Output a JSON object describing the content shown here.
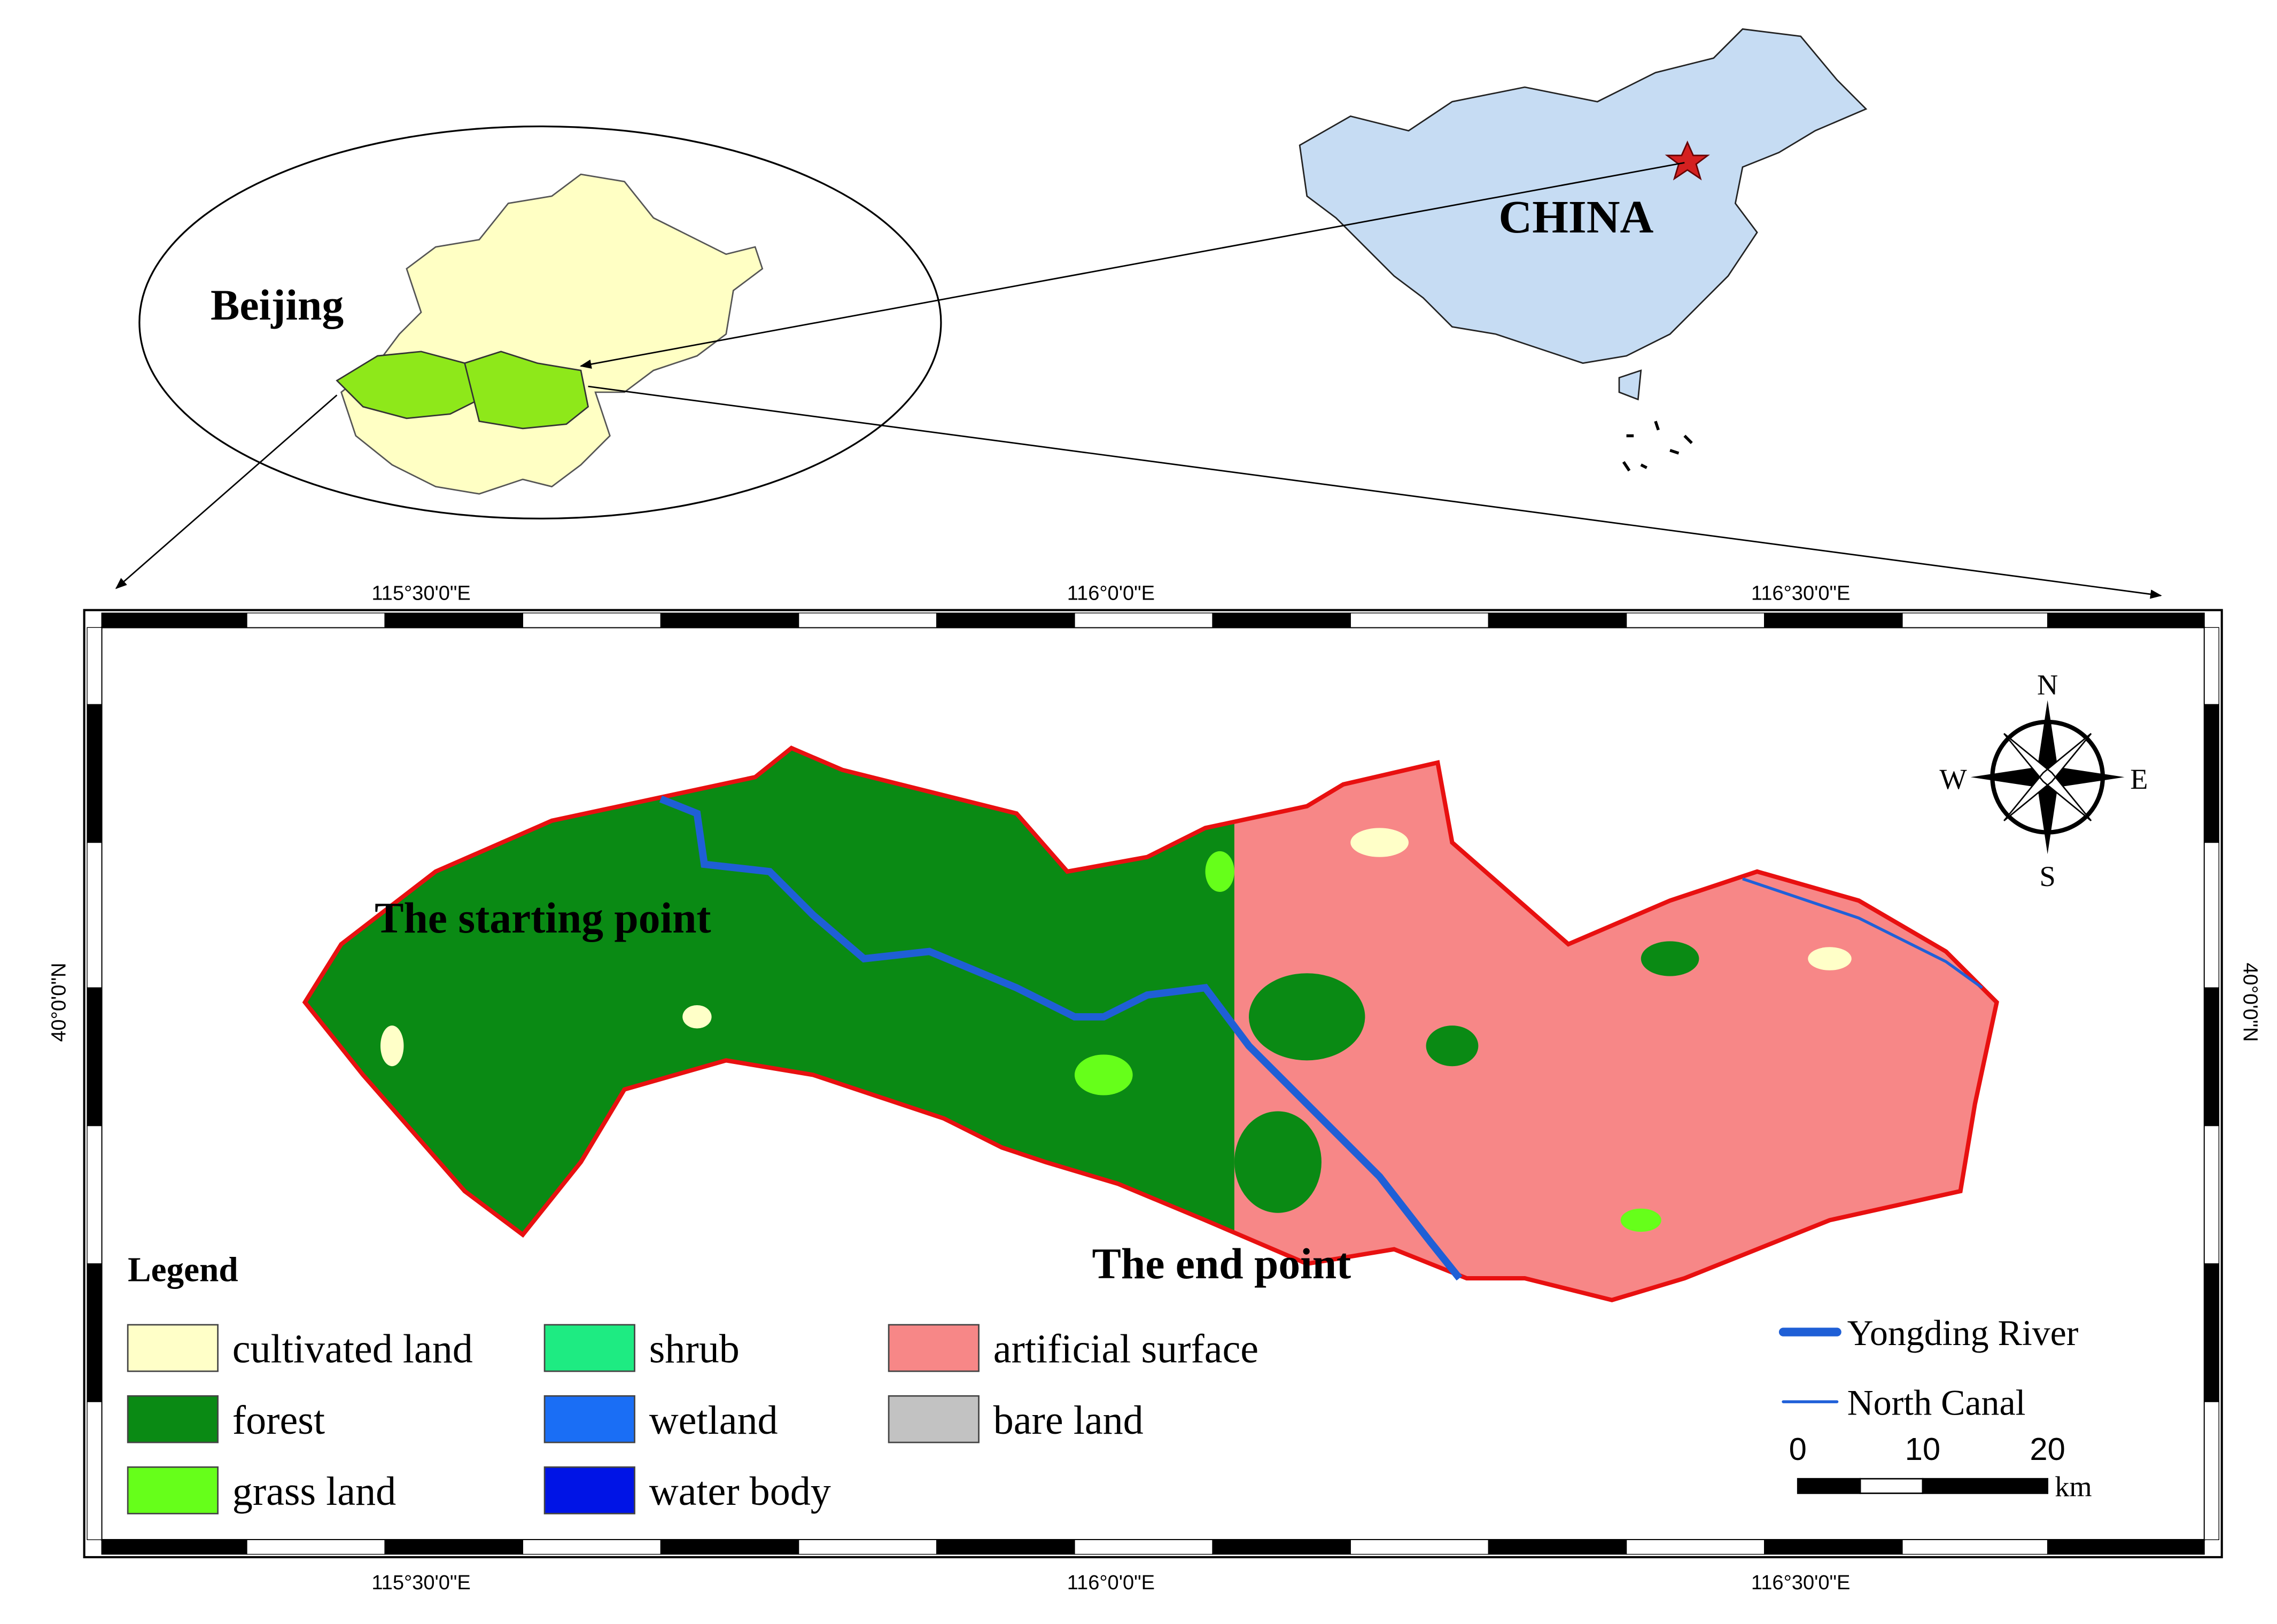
{
  "inset": {
    "beijing_label": "Beijing",
    "china_label": "CHINA"
  },
  "map": {
    "top_labels": [
      "115°30'0\"E",
      "116°0'0\"E",
      "116°30'0\"E"
    ],
    "bottom_labels": [
      "115°30'0\"E",
      "116°0'0\"E",
      "116°30'0\"E"
    ],
    "left_label": "40°0'0\"N",
    "right_label": "40°0'0\"N",
    "compass": {
      "n": "N",
      "s": "S",
      "e": "E",
      "w": "W"
    },
    "annotations": [
      "The starting point",
      "The end point"
    ]
  },
  "legend": {
    "title": "Legend",
    "items": [
      {
        "label": "cultivated land",
        "color": "#ffffc8"
      },
      {
        "label": "forest",
        "color": "#0a8a14"
      },
      {
        "label": "grass land",
        "color": "#66ff1a"
      },
      {
        "label": "shrub",
        "color": "#1eeb82"
      },
      {
        "label": "wetland",
        "color": "#1a6ef5"
      },
      {
        "label": "water body",
        "color": "#0014e6"
      },
      {
        "label": "artificial surface",
        "color": "#f78787"
      },
      {
        "label": "bare land",
        "color": "#c2c2c2"
      }
    ],
    "lines": [
      {
        "label": "Yongding River",
        "color": "#1f5fd6"
      },
      {
        "label": "North Canal",
        "color": "#2060d8"
      }
    ]
  },
  "scale_bar": {
    "ticks": [
      0,
      10,
      20
    ],
    "unit": "km"
  }
}
